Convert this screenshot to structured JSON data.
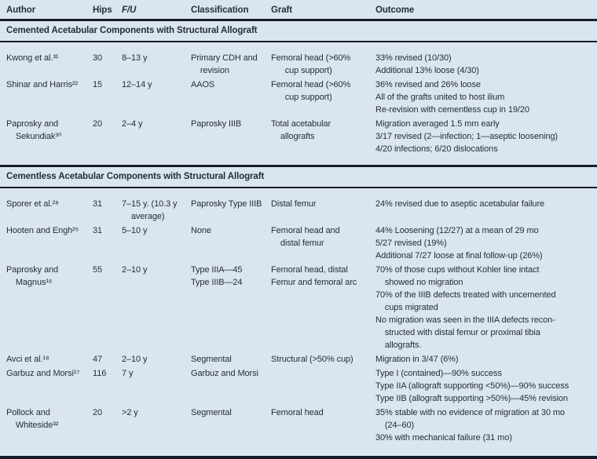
{
  "colors": {
    "background": "#dbe5f0",
    "text": "#242e3a",
    "rule": "#161d26"
  },
  "table": {
    "columns": [
      {
        "label": "Author"
      },
      {
        "label": "Hips"
      },
      {
        "label": "F/U"
      },
      {
        "label": "Classification"
      },
      {
        "label": "Graft"
      },
      {
        "label": "Outcome"
      }
    ],
    "sections": [
      {
        "title": "Cemented Acetabular Components with Structural Allograft",
        "rows": [
          {
            "author": [
              "Kwong et al.³¹"
            ],
            "hips": "30",
            "fu": [
              "8–13 y"
            ],
            "classification": [
              "Primary CDH and",
              "    revision"
            ],
            "graft": [
              "Femoral head (>60%",
              "      cup support)"
            ],
            "outcome": [
              "33% revised (10/30)",
              "Additional 13% loose (4/30)"
            ]
          },
          {
            "author": [
              "Shinar and Harris²²"
            ],
            "hips": "15",
            "fu": [
              "12–14 y"
            ],
            "classification": [
              "AAOS"
            ],
            "graft": [
              "Femoral head (>60%",
              "      cup support)"
            ],
            "outcome": [
              "36% revised and 26% loose",
              "All of the grafts united to host ilium",
              "Re-revision with cementless cup in 19/20"
            ]
          },
          {
            "author": [
              "Paprosky and",
              "    Sekundiak³⁰"
            ],
            "hips": "20",
            "fu": [
              "2–4 y"
            ],
            "classification": [
              "Paprosky IIIB"
            ],
            "graft": [
              "Total acetabular",
              "    allografts"
            ],
            "outcome": [
              "Migration averaged 1.5 mm early",
              "3/17 revised (2—infection; 1—aseptic loosening)",
              "4/20 infections; 6/20 dislocations"
            ]
          }
        ]
      },
      {
        "title": "Cementless Acetabular Components with Structural Allograft",
        "rows": [
          {
            "author": [
              "Sporer et al.²⁸"
            ],
            "hips": "31",
            "fu": [
              "7–15 y. (10.3 y",
              "    average)"
            ],
            "classification": [
              "Paprosky Type IIIB"
            ],
            "graft": [
              "Distal femur"
            ],
            "outcome": [
              "24% revised due to aseptic acetabular failure"
            ]
          },
          {
            "author": [
              "Hooten and Engh²⁵"
            ],
            "hips": "31",
            "fu": [
              "5–10 y"
            ],
            "classification": [
              "None"
            ],
            "graft": [
              "Femoral head and",
              "    distal femur"
            ],
            "outcome": [
              "44% Loosening (12/27) at a mean of 29 mo",
              "5/27 revised (19%)",
              "Additional 7/27 loose at final follow-up (26%)"
            ]
          },
          {
            "author": [
              "Paprosky and",
              "    Magnus¹⁶"
            ],
            "hips": "55",
            "fu": [
              "2–10 y"
            ],
            "classification": [
              "Type IIIA—45",
              "Type IIIB—24"
            ],
            "graft": [
              "Femoral head, distal",
              "Femur and femoral arc"
            ],
            "outcome": [
              "70% of those cups without Kohler line intact",
              "    showed no migration",
              "70% of the IIIB defects treated with uncemented",
              "    cups migrated",
              "No migration was seen in the IIIA defects recon-",
              "    structed with distal femur or proximal tibia",
              "    allografts."
            ]
          },
          {
            "author": [
              "Avci et al.¹⁸"
            ],
            "hips": "47",
            "fu": [
              "2–10 y"
            ],
            "classification": [
              "Segmental"
            ],
            "graft": [
              "Structural (>50% cup)"
            ],
            "outcome": [
              "Migration in 3/47 (6%)"
            ]
          },
          {
            "author": [
              "Garbuz and Morsi¹⁷"
            ],
            "hips": "116",
            "fu": [
              "7 y"
            ],
            "classification": [
              "Garbuz and Morsi"
            ],
            "graft": [],
            "outcome": [
              "Type I (contained)—90% success",
              "Type IIA (allograft supporting <50%)—90% success",
              "Type IIB (allograft supporting >50%)—45% revision"
            ]
          },
          {
            "author": [
              "Pollock and",
              "    Whiteside³²"
            ],
            "hips": "20",
            "fu": [
              ">2 y"
            ],
            "classification": [
              "Segmental"
            ],
            "graft": [
              "Femoral head"
            ],
            "outcome": [
              "35% stable with no evidence of migration at 30 mo",
              "    (24–60)",
              "30% with mechanical failure (31 mo)"
            ]
          }
        ]
      }
    ]
  }
}
